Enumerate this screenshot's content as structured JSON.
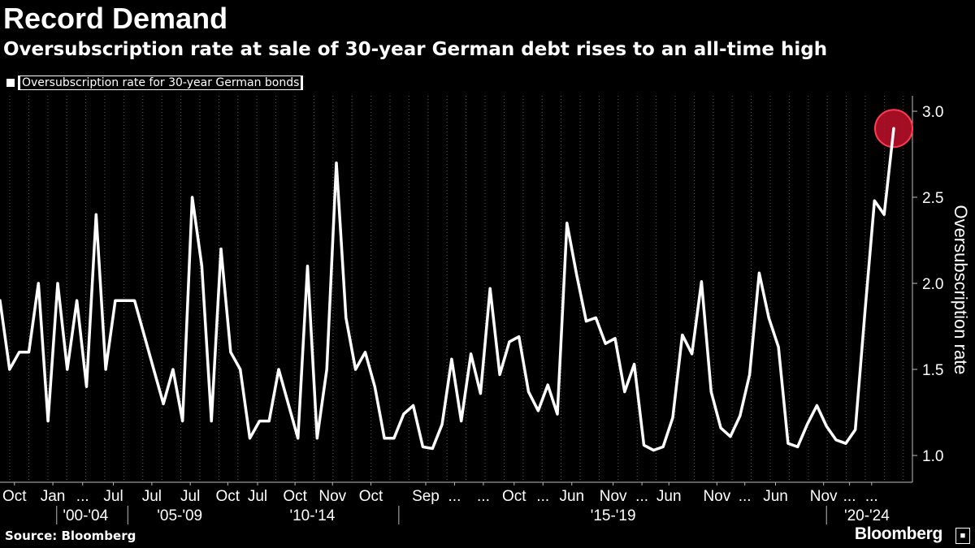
{
  "header": {
    "title": "Record Demand",
    "subtitle": "Oversubscription rate at sale of 30-year German debt rises to an all-time high"
  },
  "footer": {
    "source": "Source: Bloomberg",
    "brand": "Bloomberg"
  },
  "colors": {
    "background": "#000000",
    "line": "#ffffff",
    "grid": "#555555",
    "highlight": "#c0102a"
  },
  "chart_data": {
    "type": "line",
    "title": "Record Demand",
    "subtitle": "Oversubscription rate at sale of 30-year German debt rises to an all-time high",
    "ylabel": "Oversubscription rate",
    "ylim": [
      0.9,
      3.1
    ],
    "yticks": [
      1.0,
      1.5,
      2.0,
      2.5,
      3.0
    ],
    "ytick_labels": [
      "1.0",
      "1.5",
      "2.0",
      "2.5",
      "3.0"
    ],
    "grid": "vertical dotted",
    "legend_position": "top-left",
    "series": [
      {
        "name": "Oversubscription rate for 30-year German bonds",
        "values": [
          1.9,
          1.5,
          1.6,
          1.6,
          2.0,
          1.2,
          2.0,
          1.5,
          1.9,
          1.4,
          2.4,
          1.5,
          1.9,
          1.9,
          1.9,
          1.7,
          1.5,
          1.3,
          1.5,
          1.2,
          2.5,
          2.1,
          1.2,
          2.2,
          1.6,
          1.5,
          1.1,
          1.2,
          1.2,
          1.5,
          1.3,
          1.1,
          2.1,
          1.1,
          1.5,
          2.7,
          1.8,
          1.5,
          1.6,
          1.4,
          1.1,
          1.1,
          1.24,
          1.29,
          1.05,
          1.04,
          1.18,
          1.56,
          1.2,
          1.59,
          1.36,
          1.97,
          1.47,
          1.66,
          1.69,
          1.37,
          1.26,
          1.41,
          1.24,
          2.35,
          2.05,
          1.78,
          1.8,
          1.65,
          1.68,
          1.37,
          1.53,
          1.06,
          1.03,
          1.05,
          1.22,
          1.7,
          1.59,
          2.01,
          1.37,
          1.16,
          1.11,
          1.23,
          1.47,
          2.06,
          1.8,
          1.63,
          1.07,
          1.05,
          1.18,
          1.29,
          1.17,
          1.09,
          1.07,
          1.15,
          1.83,
          2.48,
          2.4,
          2.9
        ]
      }
    ],
    "highlight_point": {
      "index": 93,
      "value": 2.9
    },
    "x_tick_labels": [
      {
        "label": "Oct",
        "index": 1.5
      },
      {
        "label": "Jan",
        "index": 5.5
      },
      {
        "label": "...",
        "index": 8.6
      },
      {
        "label": "Jul",
        "index": 11.8
      },
      {
        "label": "Jul",
        "index": 15.8
      },
      {
        "label": "Jul",
        "index": 19.8
      },
      {
        "label": "Oct",
        "index": 23.7
      },
      {
        "label": "Jul",
        "index": 26.8
      },
      {
        "label": "Oct",
        "index": 30.7
      },
      {
        "label": "Nov",
        "index": 34.6
      },
      {
        "label": "Oct",
        "index": 38.6
      },
      {
        "label": "Sep",
        "index": 44.3
      },
      {
        "label": "...",
        "index": 47.3
      },
      {
        "label": "...",
        "index": 50.3
      },
      {
        "label": "Oct",
        "index": 53.5
      },
      {
        "label": "...",
        "index": 56.5
      },
      {
        "label": "Jun",
        "index": 59.5
      },
      {
        "label": "Nov",
        "index": 63.8
      },
      {
        "label": "...",
        "index": 66.8
      },
      {
        "label": "Jun",
        "index": 69.6
      },
      {
        "label": "Nov",
        "index": 74.6
      },
      {
        "label": "...",
        "index": 77.5
      },
      {
        "label": "Jun",
        "index": 80.7
      },
      {
        "label": "Nov",
        "index": 85.7
      },
      {
        "label": "...",
        "index": 88.4
      },
      {
        "label": "...",
        "index": 90.7
      }
    ],
    "period_labels": [
      {
        "label": "'00-'04",
        "index": 8.9
      },
      {
        "label": "'05-'09",
        "index": 18.7
      },
      {
        "label": "'10-'14",
        "index": 32.5
      },
      {
        "label": "'15-'19",
        "index": 63.8
      },
      {
        "label": "'20-'24",
        "index": 90.2
      }
    ],
    "period_dividers": [
      5.9,
      13.3,
      41.5,
      86.0
    ]
  }
}
